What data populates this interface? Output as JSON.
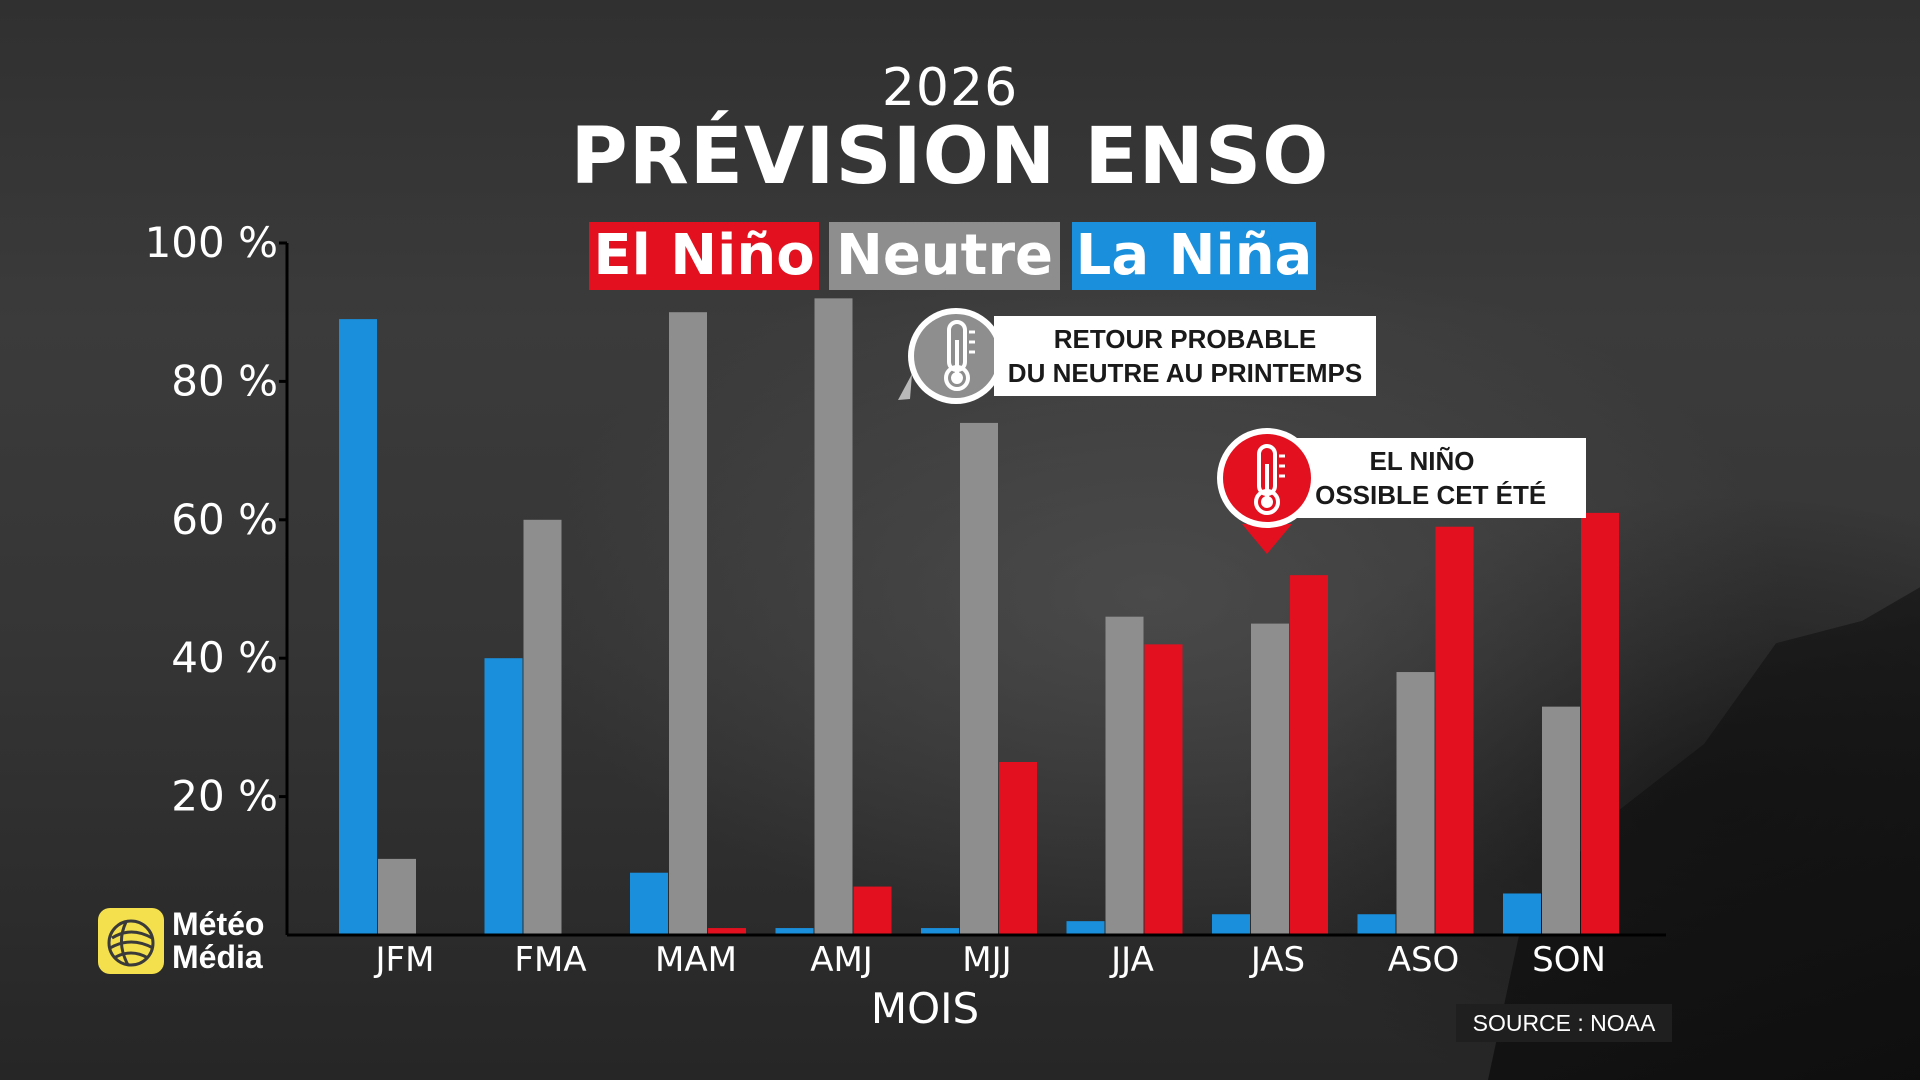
{
  "header": {
    "year": "2026",
    "title": "PRÉVISION ENSO"
  },
  "legend": [
    {
      "label": "El Niño",
      "color": "#e3101f"
    },
    {
      "label": "Neutre",
      "color": "#8e8e8e"
    },
    {
      "label": "La Niña",
      "color": "#1a8fdc"
    }
  ],
  "callouts": {
    "neutral": {
      "line1": "RETOUR PROBABLE",
      "line2": "DU NEUTRE AU PRINTEMPS",
      "icon": "thermometer-icon"
    },
    "elnino": {
      "line1": "EL NIÑO",
      "line2": "POSSIBLE CET ÉTÉ",
      "icon": "thermometer-icon"
    }
  },
  "logo": {
    "line1": "Météo",
    "line2": "Média"
  },
  "source": "SOURCE : NOAA",
  "chart_data": {
    "type": "bar",
    "categories": [
      "JFM",
      "FMA",
      "MAM",
      "AMJ",
      "MJJ",
      "JJA",
      "JAS",
      "ASO",
      "SON"
    ],
    "series": [
      {
        "name": "La Niña",
        "color": "#1a8fdc",
        "values": [
          89,
          40,
          9,
          1,
          1,
          2,
          3,
          3,
          6
        ]
      },
      {
        "name": "Neutre",
        "color": "#8e8e8e",
        "values": [
          11,
          60,
          90,
          92,
          74,
          46,
          45,
          38,
          33
        ]
      },
      {
        "name": "El Niño",
        "color": "#e3101f",
        "values": [
          0,
          0,
          1,
          7,
          25,
          42,
          52,
          59,
          61
        ]
      }
    ],
    "title": "PRÉVISION ENSO",
    "xlabel": "MOIS",
    "ylabel": "",
    "ylim": [
      0,
      100
    ],
    "yticks": [
      20,
      40,
      60,
      80,
      100
    ],
    "ytick_labels": [
      "20 %",
      "40 %",
      "60 %",
      "80 %",
      "100 %"
    ],
    "grid": false,
    "legend_position": "top"
  }
}
